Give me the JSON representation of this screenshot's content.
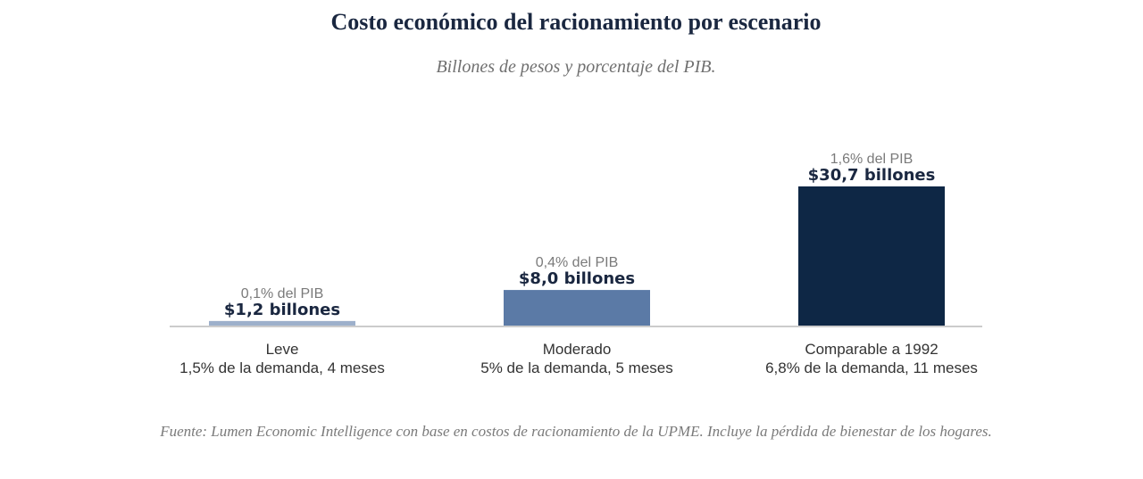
{
  "chart_data": {
    "type": "bar",
    "title": "Costo económico del racionamiento por escenario",
    "subtitle": "Billones de pesos y porcentaje del PIB.",
    "categories": [
      {
        "name": "Leve",
        "detail": "1,5% de la demanda, 4 meses"
      },
      {
        "name": "Moderado",
        "detail": "5% de la demanda, 5 meses"
      },
      {
        "name": "Comparable a 1992",
        "detail": "6,8% de la demanda, 11 meses"
      }
    ],
    "values": [
      1.2,
      8.0,
      30.7
    ],
    "value_labels": [
      "$1,2 billones",
      "$8,0 billones",
      "$30,7 billones"
    ],
    "pct_labels": [
      "0,1% del PIB",
      "0,4% del PIB",
      "1,6% del PIB"
    ],
    "colors": [
      "#9db0cb",
      "#5b7aa6",
      "#0e2745"
    ],
    "ylim": [
      0,
      30.7
    ],
    "grid": false,
    "source": "Fuente: Lumen Economic Intelligence con base en costos de racionamiento de la UPME. Incluye la pérdida de bienestar de los hogares."
  }
}
